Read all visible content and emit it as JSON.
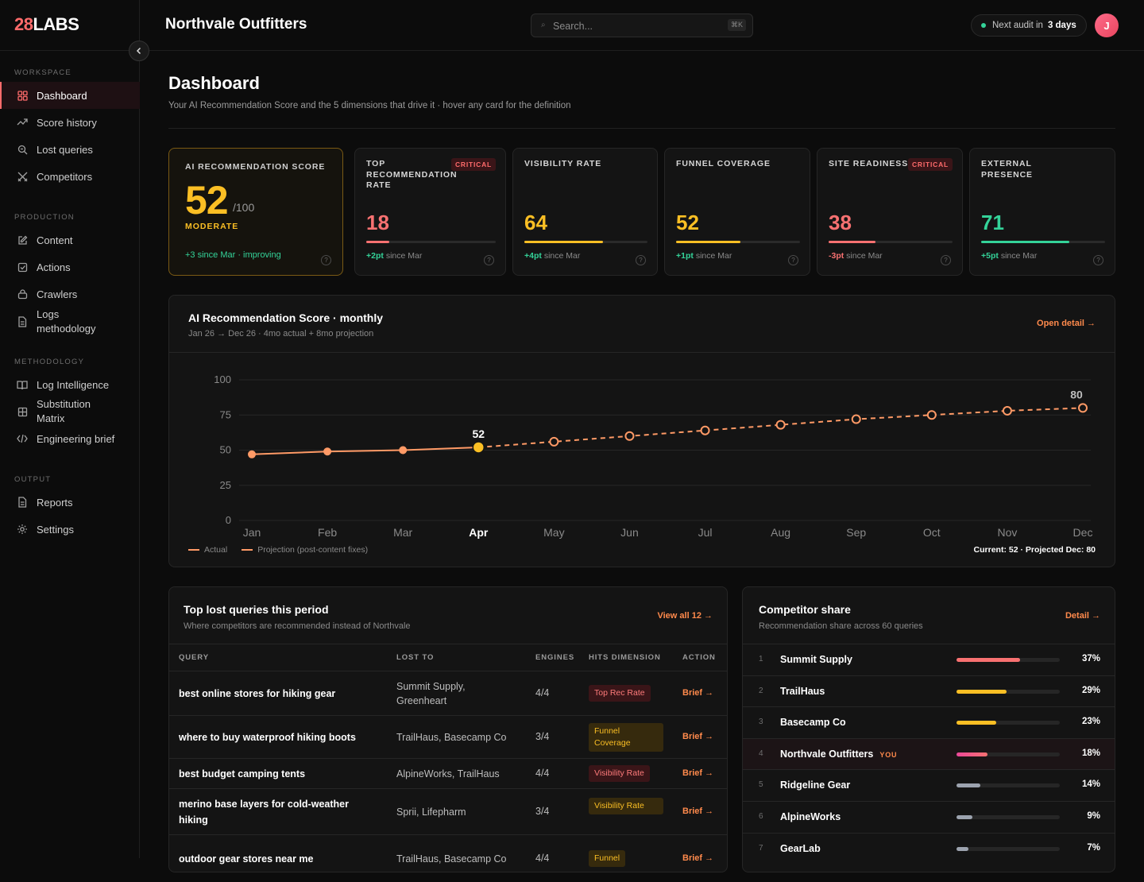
{
  "logo": {
    "num": "28",
    "text": "LABS"
  },
  "sidebar": {
    "sections": {
      "workspace": "WORKSPACE",
      "production": "PRODUCTION",
      "methodology": "METHODOLOGY",
      "output": "OUTPUT"
    },
    "items": {
      "dashboard": "Dashboard",
      "score_history": "Score history",
      "lost_queries": "Lost queries",
      "competitors": "Competitors",
      "content": "Content",
      "actions": "Actions",
      "crawlers": "Crawlers",
      "logs_methodology": "Logs methodology",
      "log_intelligence": "Log Intelligence",
      "substitution_matrix": "Substitution Matrix",
      "engineering_brief": "Engineering brief",
      "reports": "Reports",
      "settings": "Settings"
    }
  },
  "topbar": {
    "title": "Northvale Outfitters",
    "search_placeholder": "Search...",
    "search_kbd": "⌘K",
    "audit_text": "Next audit in",
    "audit_value": "3 days",
    "avatar_initial": "J"
  },
  "page": {
    "title": "Dashboard",
    "subtitle": "Your AI Recommendation Score and the 5 dimensions that drive it · hover any card for the definition"
  },
  "score_card": {
    "label": "AI RECOMMENDATION SCORE",
    "score": "52",
    "max": "/100",
    "status": "MODERATE",
    "delta": "+3 since Mar · improving",
    "help": "?"
  },
  "metrics": [
    {
      "label": "TOP RECOMMENDATION RATE",
      "critical": "CRITICAL",
      "value": "18",
      "progress": 0.18,
      "color": "#f87171",
      "delta_value": "+2pt",
      "delta_text": "since Mar",
      "delta_color": "#34d399"
    },
    {
      "label": "VISIBILITY RATE",
      "critical": "",
      "value": "64",
      "progress": 0.64,
      "color": "#fbbf24",
      "delta_value": "+4pt",
      "delta_text": "since Mar",
      "delta_color": "#34d399"
    },
    {
      "label": "FUNNEL COVERAGE",
      "critical": "",
      "value": "52",
      "progress": 0.52,
      "color": "#fbbf24",
      "delta_value": "+1pt",
      "delta_text": "since Mar",
      "delta_color": "#34d399"
    },
    {
      "label": "SITE READINESS",
      "critical": "CRITICAL",
      "value": "38",
      "progress": 0.38,
      "color": "#f87171",
      "delta_value": "-3pt",
      "delta_text": "since Mar",
      "delta_color": "#f87171"
    },
    {
      "label": "EXTERNAL PRESENCE",
      "critical": "",
      "value": "71",
      "progress": 0.71,
      "color": "#34d399",
      "delta_value": "+5pt",
      "delta_text": "since Mar",
      "delta_color": "#34d399"
    }
  ],
  "chart_panel": {
    "title": "AI Recommendation Score · monthly",
    "subtitle": "Jan 26 → Dec 26 · 4mo actual + 8mo projection",
    "link": "Open detail →",
    "legend_actual": "Actual",
    "legend_projection": "Projection (post-content fixes)",
    "footer": "Current: 52 · Projected Dec: 80"
  },
  "chart_data": {
    "type": "line",
    "x": [
      "Jan",
      "Feb",
      "Mar",
      "Apr",
      "May",
      "Jun",
      "Jul",
      "Aug",
      "Sep",
      "Oct",
      "Nov",
      "Dec"
    ],
    "series": [
      {
        "name": "Actual",
        "values": [
          47,
          49,
          50,
          52,
          null,
          null,
          null,
          null,
          null,
          null,
          null,
          null
        ]
      },
      {
        "name": "Projection (post-content fixes)",
        "values": [
          null,
          null,
          null,
          52,
          56,
          60,
          64,
          68,
          72,
          75,
          78,
          80
        ]
      }
    ],
    "y_ticks": [
      100,
      75,
      50,
      25,
      0
    ],
    "ylim": [
      0,
      100
    ],
    "highlight_label": "52",
    "end_label": "80",
    "current_month": "Apr",
    "grid": true,
    "colors": {
      "line": "#ff9a66",
      "current": "#fbbf24"
    }
  },
  "lost_queries": {
    "title": "Top lost queries this period",
    "subtitle": "Where competitors are recommended instead of Northvale",
    "link": "View all 12 →",
    "headers": {
      "query": "QUERY",
      "lost_to": "LOST TO",
      "engines": "ENGINES",
      "dimension": "HITS DIMENSION",
      "action": "ACTION"
    },
    "rows": [
      {
        "query": "best online stores for hiking gear",
        "lost_to": "Summit Supply, Greenheart",
        "engines": "4/4",
        "dimension": "Top Rec Rate",
        "dim_color": "red",
        "action": "Brief →"
      },
      {
        "query": "where to buy waterproof hiking boots",
        "lost_to": "TrailHaus, Basecamp Co",
        "engines": "3/4",
        "dimension": "Funnel Coverage",
        "dim_color": "yellow",
        "action": "Brief →"
      },
      {
        "query": "best budget camping tents",
        "lost_to": "AlpineWorks, TrailHaus",
        "engines": "4/4",
        "dimension": "Visibility Rate",
        "dim_color": "red",
        "action": "Brief →"
      },
      {
        "query": "merino base layers for cold-weather hiking",
        "lost_to": "Sprii, Lifepharm",
        "engines": "3/4",
        "dimension": "Visibility Rate",
        "dim_color": "yellow",
        "action": "Brief →"
      },
      {
        "query": "outdoor gear stores near me",
        "lost_to": "TrailHaus, Basecamp Co",
        "engines": "4/4",
        "dimension": "Funnel",
        "dim_color": "yellow",
        "action": "Brief →"
      }
    ]
  },
  "competitors": {
    "title": "Competitor share",
    "subtitle": "Recommendation share across 60 queries",
    "link": "Detail →",
    "you_tag": "YOU",
    "items": [
      {
        "rank": "1",
        "name": "Summit Supply",
        "share": 0.37,
        "pct": "37%",
        "color": "#f87171",
        "you": false
      },
      {
        "rank": "2",
        "name": "TrailHaus",
        "share": 0.29,
        "pct": "29%",
        "color": "#fbbf24",
        "you": false
      },
      {
        "rank": "3",
        "name": "Basecamp Co",
        "share": 0.23,
        "pct": "23%",
        "color": "#fbbf24",
        "you": false
      },
      {
        "rank": "4",
        "name": "Northvale Outfitters",
        "share": 0.18,
        "pct": "18%",
        "color": "#ec4899",
        "you": true
      },
      {
        "rank": "5",
        "name": "Ridgeline Gear",
        "share": 0.14,
        "pct": "14%",
        "color": "#9ca3af",
        "you": false
      },
      {
        "rank": "6",
        "name": "AlpineWorks",
        "share": 0.09,
        "pct": "9%",
        "color": "#9ca3af",
        "you": false
      },
      {
        "rank": "7",
        "name": "GearLab",
        "share": 0.07,
        "pct": "7%",
        "color": "#9ca3af",
        "you": false
      }
    ]
  }
}
